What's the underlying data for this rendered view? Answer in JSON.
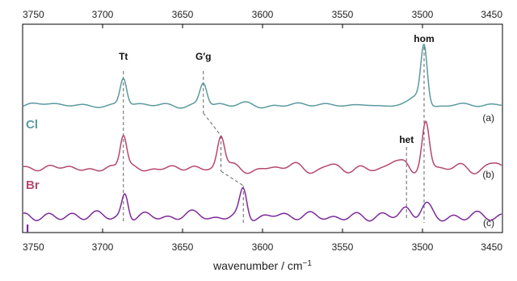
{
  "chart_data": {
    "type": "line",
    "title": "",
    "xlabel": "wavenumber / cm",
    "xlabel_superscript": "−1",
    "ylabel": "",
    "xlim": [
      3750,
      3450
    ],
    "x_reversed": true,
    "x_ticks": [
      3750,
      3700,
      3650,
      3600,
      3550,
      3500,
      3450
    ],
    "grid": false,
    "series": [
      {
        "name": "Cl",
        "panel": "(a)",
        "color": "#5b9aa0",
        "peaks": [
          {
            "x": 3687,
            "height": 0.45,
            "width": 2.0
          },
          {
            "x": 3637,
            "height": 0.38,
            "width": 2.2
          },
          {
            "x": 3499,
            "height": 1.0,
            "width": 2.0
          },
          {
            "x": 3503,
            "height": 0.12,
            "width": 3.5
          }
        ],
        "noise_amplitude": 0.035,
        "seed": 11
      },
      {
        "name": "Br",
        "panel": "(b)",
        "color": "#b5486e",
        "peaks": [
          {
            "x": 3687,
            "height": 0.55,
            "width": 2.0
          },
          {
            "x": 3626,
            "height": 0.55,
            "width": 2.2
          },
          {
            "x": 3510,
            "height": 0.16,
            "width": 2.8
          },
          {
            "x": 3498,
            "height": 0.8,
            "width": 2.2
          }
        ],
        "noise_amplitude": 0.06,
        "seed": 23
      },
      {
        "name": "I",
        "panel": "(c)",
        "color": "#7b2a9a",
        "peaks": [
          {
            "x": 3686,
            "height": 0.48,
            "width": 2.0
          },
          {
            "x": 3612,
            "height": 0.55,
            "width": 2.2
          },
          {
            "x": 3510,
            "height": 0.12,
            "width": 3.0
          },
          {
            "x": 3498,
            "height": 0.22,
            "width": 3.2
          }
        ],
        "noise_amplitude": 0.06,
        "seed": 37
      }
    ],
    "annotations": [
      {
        "text": "Tt",
        "x": 3687
      },
      {
        "text": "G′g",
        "x": 3637
      },
      {
        "text": "hom",
        "x": 3499
      },
      {
        "text": "het",
        "x": 3510
      }
    ]
  }
}
